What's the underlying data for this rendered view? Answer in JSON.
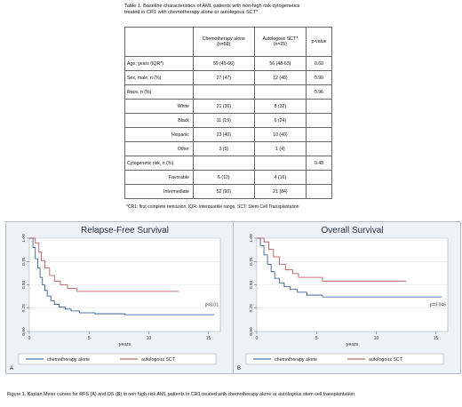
{
  "table": {
    "caption_line1": "Table 1. Baseline characteristics of AML patients with non-high risk cytogenetics",
    "caption_line2": "treated in CR1 with chemotherapy alone or autologous SCT*",
    "header": {
      "col1_l1": "Chemotherapy alone",
      "col1_l2": "(n=58)",
      "col2_l1": "Autologous SCT*",
      "col2_l2": "(n=25)",
      "col3": "p-value"
    },
    "rows": [
      {
        "label": "Age, years (IQR*)",
        "chemo": "59 (45-66)",
        "auto": "56 (48-63)",
        "p": "0.60",
        "indent": false
      },
      {
        "label": "Sex, male, n (%)",
        "chemo": "27 (47)",
        "auto": "12 (48)",
        "p": "0.90",
        "indent": false
      },
      {
        "label": "Race, n (%)",
        "chemo": "",
        "auto": "",
        "p": "0.96",
        "indent": false
      },
      {
        "label": "White",
        "chemo": "21 (36)",
        "auto": "8 (32)",
        "p": "",
        "indent": true
      },
      {
        "label": "Black",
        "chemo": "11 (19)",
        "auto": "6 (24)",
        "p": "",
        "indent": true
      },
      {
        "label": "Hispanic",
        "chemo": "23 (40)",
        "auto": "10 (40)",
        "p": "",
        "indent": true
      },
      {
        "label": "Other",
        "chemo": "3 (5)",
        "auto": "1 (4)",
        "p": "",
        "indent": true
      },
      {
        "label": "Cytogenetic risk, n (%)",
        "chemo": "",
        "auto": "",
        "p": "0.48",
        "indent": false
      },
      {
        "label": "Favorable",
        "chemo": "6 (10)",
        "auto": "4 (16)",
        "p": "",
        "indent": true
      },
      {
        "label": "Intermediate",
        "chemo": "52 (90)",
        "auto": "21 (84)",
        "p": "",
        "indent": true
      }
    ],
    "footnote": "*CR1: first complete remission, IQR: Interquartile range, SCT: Stem Cell Transplantation"
  },
  "chart_data": [
    {
      "type": "line",
      "title": "Relapse-Free Survival",
      "panel_label": "A",
      "xlabel": "years",
      "xlim": [
        0,
        16
      ],
      "ylim": [
        0,
        1
      ],
      "xticks": [
        "0",
        "5",
        "10",
        "15"
      ],
      "yticks": [
        "0.00",
        "0.25",
        "0.50",
        "0.75",
        "1.00"
      ],
      "annotation": "p<0.01",
      "legend_position": "bottom",
      "series": [
        {
          "name": "chemotherapy alone",
          "color": "#1f4e8c",
          "x": [
            0,
            0.3,
            0.5,
            0.7,
            0.9,
            1.1,
            1.3,
            1.5,
            1.8,
            2.1,
            2.5,
            3.0,
            3.5,
            4.2,
            5.5,
            8,
            15.5
          ],
          "y": [
            1.0,
            0.9,
            0.78,
            0.68,
            0.58,
            0.5,
            0.44,
            0.38,
            0.33,
            0.29,
            0.26,
            0.24,
            0.22,
            0.2,
            0.19,
            0.18,
            0.18
          ]
        },
        {
          "name": "autologous SCT",
          "color": "#b24a4a",
          "x": [
            0,
            0.5,
            0.8,
            1.0,
            1.3,
            1.7,
            2.1,
            2.6,
            3.2,
            4.0,
            12.5
          ],
          "y": [
            1.0,
            0.95,
            0.85,
            0.76,
            0.68,
            0.6,
            0.54,
            0.5,
            0.46,
            0.43,
            0.43
          ]
        }
      ]
    },
    {
      "type": "line",
      "title": "Overall Survival",
      "panel_label": "B",
      "xlabel": "years",
      "xlim": [
        0,
        16
      ],
      "ylim": [
        0,
        1
      ],
      "xticks": [
        "0",
        "5",
        "10",
        "15"
      ],
      "yticks": [
        "0.00",
        "0.25",
        "0.50",
        "0.75",
        "1.00"
      ],
      "annotation": "p=0.046",
      "legend_position": "bottom",
      "series": [
        {
          "name": "chemotherapy alone",
          "color": "#1f4e8c",
          "x": [
            0,
            0.3,
            0.6,
            0.9,
            1.2,
            1.5,
            1.9,
            2.3,
            2.8,
            3.4,
            4.2,
            5.5,
            15.5
          ],
          "y": [
            1.0,
            0.92,
            0.82,
            0.72,
            0.64,
            0.57,
            0.52,
            0.48,
            0.45,
            0.42,
            0.39,
            0.37,
            0.37
          ]
        },
        {
          "name": "autologous SCT",
          "color": "#b24a4a",
          "x": [
            0,
            0.6,
            1.0,
            1.4,
            1.9,
            2.4,
            3.0,
            3.5,
            5.5,
            12.5
          ],
          "y": [
            1.0,
            0.96,
            0.88,
            0.8,
            0.72,
            0.66,
            0.62,
            0.58,
            0.54,
            0.54
          ]
        }
      ]
    }
  ],
  "figure_caption": "Figure 1. Kaplan Meier curves for RFS (A) and OS (B) in non high-risk AML patients in CR1 treated with chemotherapy alone or autologous stem cell transplantation"
}
